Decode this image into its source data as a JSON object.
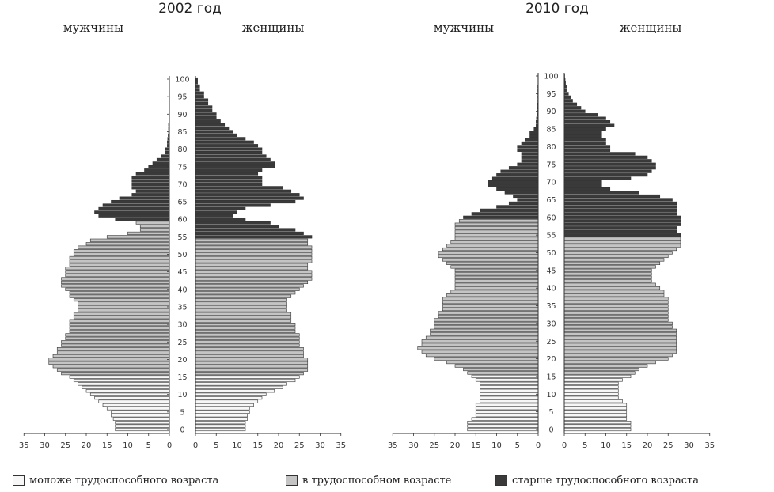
{
  "chart_data": [
    {
      "type": "bar",
      "subtype": "population-pyramid",
      "title": "2002 год",
      "left_label": "мужчины",
      "right_label": "женщины",
      "age_ticks": [
        "0",
        "5",
        "10",
        "15",
        "20",
        "25",
        "30",
        "35",
        "40",
        "45",
        "50",
        "55",
        "60",
        "65",
        "70",
        "75",
        "80",
        "85",
        "90",
        "95",
        "100"
      ],
      "male_axis_ticks": [
        "35",
        "30",
        "25",
        "20",
        "15",
        "10",
        "5",
        "0"
      ],
      "female_axis_ticks": [
        "0",
        "5",
        "10",
        "15",
        "20",
        "25",
        "30",
        "35"
      ],
      "xlim": [
        0,
        35
      ],
      "ages": [
        0,
        1,
        2,
        3,
        4,
        5,
        6,
        7,
        8,
        9,
        10,
        11,
        12,
        13,
        14,
        15,
        16,
        17,
        18,
        19,
        20,
        21,
        22,
        23,
        24,
        25,
        26,
        27,
        28,
        29,
        30,
        31,
        32,
        33,
        34,
        35,
        36,
        37,
        38,
        39,
        40,
        41,
        42,
        43,
        44,
        45,
        46,
        47,
        48,
        49,
        50,
        51,
        52,
        53,
        54,
        55,
        56,
        57,
        58,
        59,
        60,
        61,
        62,
        63,
        64,
        65,
        66,
        67,
        68,
        69,
        70,
        71,
        72,
        73,
        74,
        75,
        76,
        77,
        78,
        79,
        80,
        81,
        82,
        83,
        84,
        85,
        86,
        87,
        88,
        89,
        90,
        91,
        92,
        93,
        94,
        95,
        96,
        97,
        98,
        99,
        100
      ],
      "male": [
        13,
        13,
        13,
        13.5,
        14,
        14,
        15,
        16,
        17,
        18,
        19,
        20,
        21,
        22,
        23,
        24,
        26,
        27,
        28,
        29,
        29,
        28,
        27,
        27,
        26,
        26,
        25,
        25,
        24,
        24,
        24,
        24,
        23,
        23,
        22,
        22,
        22,
        23,
        24,
        24,
        25,
        26,
        26,
        26,
        25,
        25,
        25,
        24,
        24,
        24,
        23,
        23,
        22,
        20,
        19,
        15,
        10,
        7,
        7,
        8,
        13,
        17,
        18,
        17,
        16,
        14,
        12,
        9,
        8,
        9,
        9,
        9,
        9,
        8,
        6,
        5,
        4,
        3,
        2,
        1,
        1,
        0.5,
        0.5,
        0.4,
        0.3,
        0.2,
        0.2,
        0.2,
        0.1,
        0.1,
        0.1,
        0.1,
        0.1,
        0.1,
        0.05,
        0.05,
        0.05,
        0.05,
        0.05,
        0.05,
        0.05
      ],
      "female": [
        12,
        12,
        12,
        12.5,
        12.5,
        13,
        13,
        14,
        15,
        16,
        17,
        19,
        21,
        22,
        24,
        25,
        26,
        27,
        27,
        27,
        27,
        26,
        26,
        26,
        25,
        25,
        25,
        25,
        24,
        24,
        24,
        23,
        23,
        23,
        22,
        22,
        22,
        22,
        23,
        24,
        25,
        26,
        27,
        28,
        28,
        28,
        27,
        27,
        28,
        28,
        28,
        28,
        28,
        27,
        27,
        28,
        26,
        24,
        20,
        18,
        12,
        9,
        10,
        12,
        18,
        24,
        26,
        25,
        23,
        21,
        16,
        16,
        16,
        15,
        16,
        19,
        19,
        18,
        17,
        16,
        16,
        15,
        14,
        12,
        10,
        9,
        8,
        7,
        6,
        5,
        5,
        4,
        4,
        3,
        3,
        2,
        2,
        1,
        1,
        0.5,
        0.5
      ],
      "male_groups": {
        "pre_working_max_age": 15,
        "working_max_age": 59
      },
      "female_groups": {
        "pre_working_max_age": 15,
        "working_max_age": 54
      }
    },
    {
      "type": "bar",
      "subtype": "population-pyramid",
      "title": "2010 год",
      "left_label": "мужчины",
      "right_label": "женщины",
      "age_ticks": [
        "0",
        "5",
        "10",
        "15",
        "20",
        "25",
        "30",
        "35",
        "40",
        "45",
        "50",
        "55",
        "60",
        "65",
        "70",
        "75",
        "80",
        "85",
        "90",
        "95",
        "100"
      ],
      "male_axis_ticks": [
        "35",
        "30",
        "25",
        "20",
        "15",
        "10",
        "5",
        "0"
      ],
      "female_axis_ticks": [
        "0",
        "5",
        "10",
        "15",
        "20",
        "25",
        "30",
        "35"
      ],
      "xlim": [
        0,
        35
      ],
      "ages": [
        0,
        1,
        2,
        3,
        4,
        5,
        6,
        7,
        8,
        9,
        10,
        11,
        12,
        13,
        14,
        15,
        16,
        17,
        18,
        19,
        20,
        21,
        22,
        23,
        24,
        25,
        26,
        27,
        28,
        29,
        30,
        31,
        32,
        33,
        34,
        35,
        36,
        37,
        38,
        39,
        40,
        41,
        42,
        43,
        44,
        45,
        46,
        47,
        48,
        49,
        50,
        51,
        52,
        53,
        54,
        55,
        56,
        57,
        58,
        59,
        60,
        61,
        62,
        63,
        64,
        65,
        66,
        67,
        68,
        69,
        70,
        71,
        72,
        73,
        74,
        75,
        76,
        77,
        78,
        79,
        80,
        81,
        82,
        83,
        84,
        85,
        86,
        87,
        88,
        89,
        90,
        91,
        92,
        93,
        94,
        95,
        96,
        97,
        98,
        99,
        100
      ],
      "male": [
        17,
        17,
        17,
        16,
        15,
        15,
        15,
        15,
        14,
        14,
        14,
        14,
        14,
        14,
        15,
        16,
        17,
        18,
        20,
        22,
        25,
        27,
        28,
        29,
        28,
        28,
        27,
        26,
        26,
        25,
        25,
        25,
        24,
        24,
        23,
        23,
        23,
        23,
        22,
        21,
        20,
        20,
        20,
        20,
        20,
        20,
        21,
        22,
        23,
        24,
        24,
        23,
        22,
        21,
        20,
        20,
        20,
        20,
        20,
        19,
        18,
        16,
        14,
        10,
        7,
        5,
        6,
        8,
        10,
        12,
        12,
        11,
        10,
        9,
        7,
        5,
        4,
        4,
        4,
        5,
        5,
        4,
        3,
        2,
        2,
        1,
        0.5,
        0.5,
        0.4,
        0.3,
        0.3,
        0.2,
        0.2,
        0.1,
        0.1,
        0.1,
        0.1,
        0.1,
        0.05,
        0.05,
        0.05
      ],
      "female": [
        16,
        16,
        16,
        15,
        15,
        15,
        15,
        15,
        14,
        13,
        13,
        13,
        13,
        13,
        14,
        16,
        17,
        18,
        20,
        22,
        25,
        26,
        27,
        27,
        27,
        27,
        27,
        27,
        27,
        26,
        26,
        25,
        25,
        25,
        25,
        25,
        25,
        25,
        24,
        24,
        23,
        22,
        21,
        21,
        21,
        21,
        22,
        23,
        24,
        25,
        26,
        27,
        28,
        28,
        28,
        28,
        27,
        27,
        28,
        28,
        28,
        27,
        27,
        27,
        27,
        26,
        23,
        18,
        11,
        9,
        9,
        16,
        20,
        21,
        22,
        22,
        21,
        20,
        17,
        11,
        11,
        10,
        10,
        9,
        9,
        10,
        12,
        11,
        10,
        8,
        5,
        4,
        3,
        2,
        1.5,
        1,
        0.5,
        0.5,
        0.3,
        0.2,
        0.1
      ],
      "male_groups": {
        "pre_working_max_age": 15,
        "working_max_age": 59
      },
      "female_groups": {
        "pre_working_max_age": 15,
        "working_max_age": 54
      }
    }
  ],
  "legend": [
    {
      "label": "моложе трудоспособного возраста",
      "color": "#f7f7f7"
    },
    {
      "label": "в трудоспособном возрасте",
      "color": "#c4c4c4"
    },
    {
      "label": "старше трудоспособного возраста",
      "color": "#3a3a3a"
    }
  ],
  "colors": {
    "pre_working": "#f7f7f7",
    "working": "#c4c4c4",
    "post_working": "#3a3a3a",
    "outline": "#333333"
  }
}
